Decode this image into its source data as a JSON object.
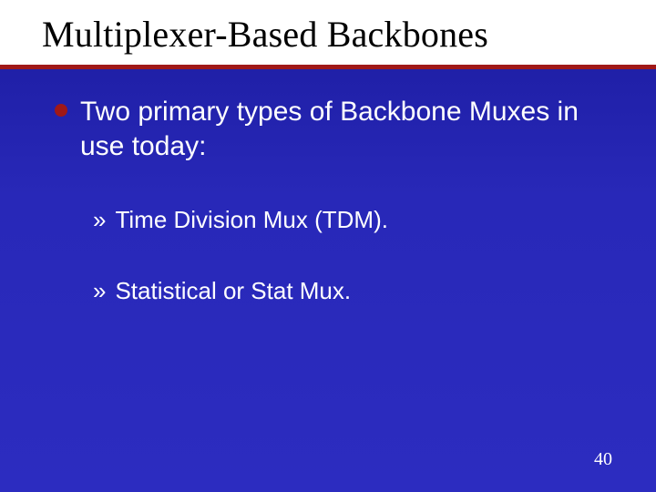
{
  "slide": {
    "title": "Multiplexer-Based Backbones",
    "mainPoint": "Two primary types of Backbone Muxes in use today:",
    "subPoints": [
      "Time Division Mux (TDM).",
      "Statistical or Stat Mux."
    ],
    "pageNumber": "40"
  },
  "style": {
    "backgroundGradient": [
      "#1a1a8a",
      "#2020a8",
      "#2828b8",
      "#2c2cc0"
    ],
    "titleBackground": "#ffffff",
    "titleColor": "#000000",
    "titleFontFamily": "Times New Roman",
    "titleFontSize": 40,
    "ruleColor": "#a01818",
    "ruleHeight": 5,
    "bulletColor": "#a01818",
    "bulletSize": 14,
    "bodyTextColor": "#ffffff",
    "mainFontSize": 30,
    "subFontSize": 26,
    "subMarker": "»",
    "pageNumColor": "#ffffff",
    "pageNumFontSize": 20
  }
}
